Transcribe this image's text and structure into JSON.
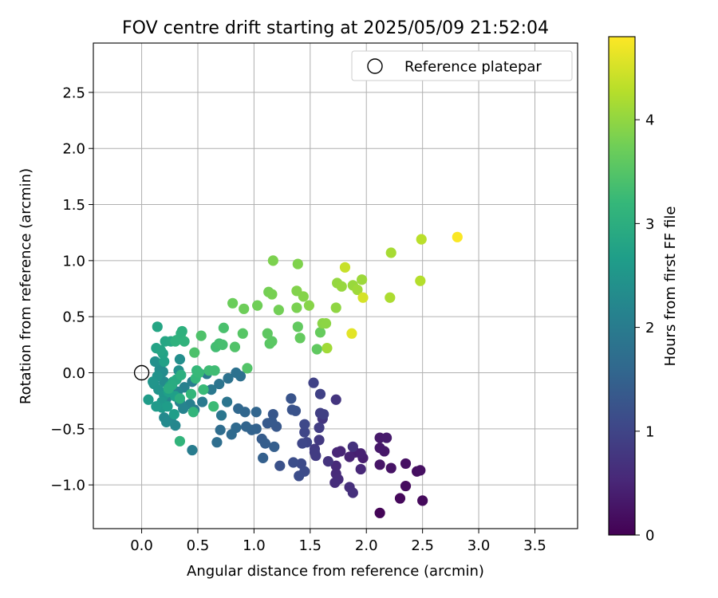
{
  "chart_data": {
    "type": "scatter",
    "title": "FOV centre drift starting at 2025/05/09 21:52:04",
    "xlabel": "Angular distance from reference (arcmin)",
    "ylabel": "Rotation from reference (arcmin)",
    "xlim": [
      -0.43,
      3.88
    ],
    "ylim": [
      -1.39,
      2.94
    ],
    "xticks": [
      0.0,
      0.5,
      1.0,
      1.5,
      2.0,
      2.5,
      3.0,
      3.5
    ],
    "xtick_labels": [
      "0.0",
      "0.5",
      "1.0",
      "1.5",
      "2.0",
      "2.5",
      "3.0",
      "3.5"
    ],
    "yticks": [
      -1.0,
      -0.5,
      0.0,
      0.5,
      1.0,
      1.5,
      2.0,
      2.5
    ],
    "ytick_labels": [
      "−1.0",
      "−0.5",
      "0.0",
      "0.5",
      "1.0",
      "1.5",
      "2.0",
      "2.5"
    ],
    "grid": true,
    "legend": {
      "placement": "top-right",
      "entries": [
        {
          "label": "Reference platepar",
          "marker": "open-circle",
          "x": 0.0,
          "y": 0.0
        }
      ]
    },
    "colorbar": {
      "label": "Hours from first FF file",
      "colormap": "viridis",
      "range": [
        0,
        4.8
      ],
      "ticks": [
        0,
        1,
        2,
        3,
        4
      ],
      "tick_labels": [
        "0",
        "1",
        "2",
        "3",
        "4"
      ],
      "colors": [
        "#440154",
        "#482878",
        "#3e4989",
        "#31688e",
        "#26828e",
        "#1f9e89",
        "#35b779",
        "#6ece58",
        "#b5de2b",
        "#fde725"
      ]
    },
    "points": [
      [
        2.12,
        -1.25,
        0.05
      ],
      [
        2.3,
        -1.12,
        0.1
      ],
      [
        2.5,
        -1.14,
        0.12
      ],
      [
        2.35,
        -1.01,
        0.15
      ],
      [
        2.45,
        -0.88,
        0.18
      ],
      [
        2.48,
        -0.87,
        0.2
      ],
      [
        2.35,
        -0.81,
        0.22
      ],
      [
        2.22,
        -0.85,
        0.25
      ],
      [
        2.12,
        -0.82,
        0.28
      ],
      [
        2.16,
        -0.7,
        0.3
      ],
      [
        2.12,
        -0.67,
        0.32
      ],
      [
        2.12,
        -0.58,
        0.34
      ],
      [
        2.18,
        -0.58,
        0.36
      ],
      [
        1.97,
        -0.76,
        0.4
      ],
      [
        1.9,
        -0.71,
        0.42
      ],
      [
        1.95,
        -0.72,
        0.44
      ],
      [
        1.85,
        -0.75,
        0.48
      ],
      [
        1.77,
        -0.7,
        0.5
      ],
      [
        1.74,
        -0.71,
        0.52
      ],
      [
        1.95,
        -0.86,
        0.54
      ],
      [
        1.73,
        -0.83,
        0.56
      ],
      [
        1.73,
        -0.9,
        0.58
      ],
      [
        1.75,
        -0.95,
        0.6
      ],
      [
        1.72,
        -0.98,
        0.62
      ],
      [
        1.85,
        -1.02,
        0.64
      ],
      [
        1.88,
        -1.07,
        0.66
      ],
      [
        1.88,
        -0.66,
        0.7
      ],
      [
        1.66,
        -0.79,
        0.72
      ],
      [
        1.73,
        -0.24,
        0.74
      ],
      [
        1.61,
        -0.41,
        0.76
      ],
      [
        1.58,
        -0.6,
        0.8
      ],
      [
        1.54,
        -0.68,
        0.82
      ],
      [
        1.55,
        -0.74,
        0.84
      ],
      [
        1.54,
        -0.71,
        0.86
      ],
      [
        1.58,
        -0.49,
        0.88
      ],
      [
        1.59,
        -0.36,
        0.9
      ],
      [
        1.62,
        -0.37,
        0.92
      ],
      [
        1.59,
        -0.19,
        0.94
      ],
      [
        1.53,
        -0.09,
        0.96
      ],
      [
        1.47,
        -0.62,
        1.0
      ],
      [
        1.45,
        -0.53,
        1.02
      ],
      [
        1.43,
        -0.63,
        1.04
      ],
      [
        1.45,
        -0.46,
        1.06
      ],
      [
        1.42,
        -0.81,
        1.1
      ],
      [
        1.45,
        -0.88,
        1.12
      ],
      [
        1.4,
        -0.92,
        1.14
      ],
      [
        1.35,
        -0.8,
        1.16
      ],
      [
        1.23,
        -0.83,
        1.2
      ],
      [
        1.37,
        -0.34,
        1.22
      ],
      [
        1.34,
        -0.33,
        1.24
      ],
      [
        1.33,
        -0.23,
        1.26
      ],
      [
        1.17,
        -0.37,
        1.3
      ],
      [
        1.2,
        -0.48,
        1.32
      ],
      [
        1.16,
        -0.44,
        1.34
      ],
      [
        1.12,
        -0.45,
        1.36
      ],
      [
        1.07,
        -0.59,
        1.4
      ],
      [
        1.1,
        -0.63,
        1.42
      ],
      [
        1.18,
        -0.66,
        1.44
      ],
      [
        1.08,
        -0.76,
        1.46
      ],
      [
        1.02,
        -0.5,
        1.5
      ],
      [
        0.98,
        -0.51,
        1.52
      ],
      [
        0.93,
        -0.48,
        1.54
      ],
      [
        1.02,
        -0.35,
        1.56
      ],
      [
        0.92,
        -0.35,
        1.58
      ],
      [
        0.86,
        -0.32,
        1.6
      ],
      [
        0.84,
        -0.49,
        1.64
      ],
      [
        0.8,
        -0.55,
        1.66
      ],
      [
        0.7,
        -0.51,
        1.7
      ],
      [
        0.67,
        -0.62,
        1.72
      ],
      [
        0.88,
        -0.03,
        1.76
      ],
      [
        0.84,
        0.0,
        1.78
      ],
      [
        0.77,
        -0.05,
        1.8
      ],
      [
        0.69,
        -0.1,
        1.84
      ],
      [
        0.76,
        -0.26,
        1.86
      ],
      [
        0.71,
        -0.38,
        1.88
      ],
      [
        0.62,
        -0.15,
        1.92
      ],
      [
        0.58,
        -0.01,
        1.94
      ],
      [
        0.54,
        -0.26,
        1.96
      ],
      [
        0.47,
        -0.33,
        2.0
      ],
      [
        0.45,
        -0.69,
        2.02
      ],
      [
        0.45,
        -0.08,
        2.06
      ],
      [
        0.43,
        -0.28,
        2.08
      ],
      [
        0.38,
        -0.13,
        2.1
      ],
      [
        0.34,
        -0.26,
        2.14
      ],
      [
        0.37,
        -0.32,
        2.16
      ],
      [
        0.32,
        -0.17,
        2.18
      ],
      [
        0.3,
        -0.47,
        2.2
      ],
      [
        0.26,
        -0.42,
        2.22
      ],
      [
        0.22,
        -0.23,
        2.24
      ],
      [
        0.2,
        -0.4,
        2.26
      ],
      [
        0.22,
        -0.44,
        2.28
      ],
      [
        0.2,
        -0.08,
        2.3
      ],
      [
        0.19,
        0.01,
        2.32
      ],
      [
        0.16,
        0.03,
        2.34
      ],
      [
        0.34,
        0.12,
        2.36
      ],
      [
        0.33,
        0.02,
        2.38
      ],
      [
        0.12,
        0.1,
        2.4
      ],
      [
        0.14,
        -0.03,
        2.44
      ],
      [
        0.11,
        -0.1,
        2.46
      ],
      [
        0.15,
        -0.15,
        2.48
      ],
      [
        0.1,
        -0.08,
        2.5
      ],
      [
        0.2,
        -0.2,
        2.52
      ],
      [
        0.18,
        -0.26,
        2.56
      ],
      [
        0.18,
        -0.31,
        2.58
      ],
      [
        0.13,
        -0.3,
        2.6
      ],
      [
        0.06,
        -0.24,
        2.62
      ],
      [
        0.23,
        -0.3,
        2.64
      ],
      [
        0.29,
        -0.37,
        2.66
      ],
      [
        0.3,
        -0.21,
        2.68
      ],
      [
        0.24,
        -0.17,
        2.7
      ],
      [
        0.25,
        -0.12,
        2.72
      ],
      [
        0.2,
        0.1,
        2.74
      ],
      [
        0.19,
        0.17,
        2.76
      ],
      [
        0.13,
        0.22,
        2.78
      ],
      [
        0.17,
        0.2,
        2.8
      ],
      [
        0.14,
        0.41,
        2.82
      ],
      [
        0.21,
        0.28,
        2.84
      ],
      [
        0.26,
        0.28,
        2.86
      ],
      [
        0.28,
        -0.08,
        2.88
      ],
      [
        0.31,
        -0.06,
        2.9
      ],
      [
        0.27,
        -0.11,
        2.94
      ],
      [
        0.24,
        -0.14,
        2.96
      ],
      [
        0.34,
        -0.23,
        2.98
      ],
      [
        0.35,
        -0.02,
        3.0
      ],
      [
        0.31,
        0.29,
        3.02
      ],
      [
        0.36,
        0.37,
        3.04
      ],
      [
        0.35,
        0.35,
        3.06
      ],
      [
        0.3,
        0.28,
        3.08
      ],
      [
        0.38,
        0.28,
        3.1
      ],
      [
        0.34,
        -0.61,
        3.12
      ],
      [
        0.46,
        -0.35,
        3.14
      ],
      [
        0.44,
        -0.19,
        3.16
      ],
      [
        0.48,
        -0.05,
        3.18
      ],
      [
        0.49,
        0.02,
        3.2
      ],
      [
        0.51,
        0.0,
        3.22
      ],
      [
        0.55,
        -0.15,
        3.24
      ],
      [
        0.64,
        -0.3,
        3.26
      ],
      [
        0.6,
        0.02,
        3.28
      ],
      [
        0.65,
        0.02,
        3.3
      ],
      [
        0.66,
        0.23,
        3.32
      ],
      [
        0.69,
        0.26,
        3.34
      ],
      [
        0.72,
        0.25,
        3.36
      ],
      [
        0.73,
        0.4,
        3.4
      ],
      [
        0.47,
        0.18,
        3.42
      ],
      [
        0.53,
        0.33,
        3.44
      ],
      [
        0.83,
        0.23,
        3.46
      ],
      [
        0.94,
        0.04,
        3.48
      ],
      [
        0.9,
        0.35,
        3.52
      ],
      [
        1.14,
        0.26,
        3.54
      ],
      [
        1.16,
        0.28,
        3.56
      ],
      [
        1.12,
        0.35,
        3.58
      ],
      [
        1.56,
        0.21,
        3.6
      ],
      [
        1.39,
        0.41,
        3.62
      ],
      [
        1.41,
        0.31,
        3.64
      ],
      [
        1.59,
        0.36,
        3.66
      ],
      [
        0.81,
        0.62,
        3.7
      ],
      [
        0.91,
        0.57,
        3.72
      ],
      [
        1.03,
        0.6,
        3.74
      ],
      [
        1.22,
        0.56,
        3.76
      ],
      [
        1.13,
        0.72,
        3.78
      ],
      [
        1.16,
        0.7,
        3.8
      ],
      [
        1.38,
        0.58,
        3.82
      ],
      [
        1.17,
        1.0,
        3.84
      ],
      [
        1.39,
        0.97,
        3.86
      ],
      [
        1.38,
        0.73,
        3.88
      ],
      [
        1.44,
        0.68,
        3.9
      ],
      [
        1.49,
        0.6,
        3.92
      ],
      [
        1.61,
        0.44,
        3.94
      ],
      [
        1.64,
        0.44,
        3.96
      ],
      [
        1.73,
        0.58,
        3.98
      ],
      [
        1.74,
        0.8,
        4.02
      ],
      [
        1.78,
        0.77,
        4.04
      ],
      [
        1.88,
        0.78,
        4.06
      ],
      [
        1.96,
        0.83,
        4.08
      ],
      [
        1.92,
        0.74,
        4.1
      ],
      [
        1.65,
        0.22,
        4.12
      ],
      [
        2.22,
        1.07,
        4.16
      ],
      [
        2.21,
        0.67,
        4.2
      ],
      [
        2.48,
        0.82,
        4.26
      ],
      [
        2.49,
        1.19,
        4.3
      ],
      [
        1.81,
        0.94,
        4.4
      ],
      [
        1.97,
        0.67,
        4.5
      ],
      [
        1.87,
        0.35,
        4.6
      ],
      [
        2.81,
        1.21,
        4.78
      ]
    ]
  }
}
